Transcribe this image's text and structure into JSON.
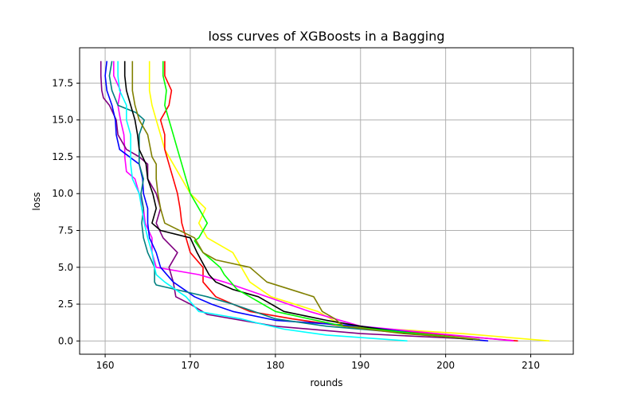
{
  "chart_data": {
    "type": "line",
    "title": "loss curves of XGBoosts in a Bagging",
    "xlabel": "rounds",
    "ylabel": "loss",
    "xlim": [
      157,
      215
    ],
    "ylim": [
      -0.9,
      19.9
    ],
    "xticks": [
      160,
      170,
      180,
      190,
      200,
      210
    ],
    "yticks": [
      0.0,
      2.5,
      5.0,
      7.5,
      10.0,
      12.5,
      15.0,
      17.5
    ],
    "xtick_labels": [
      "160",
      "170",
      "180",
      "190",
      "200",
      "210"
    ],
    "ytick_labels": [
      "0.0",
      "2.5",
      "5.0",
      "7.5",
      "10.0",
      "12.5",
      "15.0",
      "17.5"
    ],
    "grid": true,
    "legend": "none",
    "series": [
      {
        "color": "#ffff00",
        "points": [
          [
            212.2,
            0
          ],
          [
            202,
            0.5
          ],
          [
            188,
            1
          ],
          [
            185,
            2
          ],
          [
            179.5,
            3
          ],
          [
            177,
            4
          ],
          [
            175,
            6
          ],
          [
            172,
            7
          ],
          [
            171,
            8
          ],
          [
            171.8,
            9
          ],
          [
            170,
            10
          ],
          [
            169,
            11
          ],
          [
            168,
            12
          ],
          [
            167,
            13
          ],
          [
            166.5,
            14
          ],
          [
            166,
            15
          ],
          [
            165.5,
            16
          ],
          [
            165.2,
            17
          ],
          [
            165.2,
            19
          ]
        ]
      },
      {
        "color": "#ff0000",
        "points": [
          [
            208.5,
            0
          ],
          [
            198,
            0.5
          ],
          [
            188,
            1
          ],
          [
            182,
            1.5
          ],
          [
            177,
            2
          ],
          [
            173,
            3
          ],
          [
            171.5,
            4
          ],
          [
            171.5,
            5
          ],
          [
            170,
            6
          ],
          [
            169.5,
            7
          ],
          [
            169,
            8
          ],
          [
            168.8,
            9
          ],
          [
            168.5,
            10
          ],
          [
            168,
            11
          ],
          [
            167.5,
            12
          ],
          [
            167,
            13
          ],
          [
            167,
            14
          ],
          [
            166.5,
            15
          ],
          [
            167.5,
            16
          ],
          [
            167.8,
            17
          ],
          [
            167,
            18
          ],
          [
            167,
            19
          ]
        ]
      },
      {
        "color": "#ff00ff",
        "points": [
          [
            208,
            0
          ],
          [
            199,
            0.5
          ],
          [
            190,
            1
          ],
          [
            184,
            2
          ],
          [
            179,
            3
          ],
          [
            174,
            4
          ],
          [
            171,
            4.5
          ],
          [
            166,
            5
          ],
          [
            165.5,
            6
          ],
          [
            165.5,
            7
          ],
          [
            164.7,
            8
          ],
          [
            164.5,
            9
          ],
          [
            164,
            10
          ],
          [
            163.5,
            11
          ],
          [
            162.5,
            11.5
          ],
          [
            162.3,
            12.5
          ],
          [
            162.3,
            13
          ],
          [
            162.2,
            14
          ],
          [
            161.8,
            15
          ],
          [
            161.5,
            16
          ],
          [
            161.8,
            17
          ],
          [
            161,
            18
          ],
          [
            161,
            19
          ]
        ]
      },
      {
        "color": "#800080",
        "points": [
          [
            204,
            0.1
          ],
          [
            190,
            0.5
          ],
          [
            180,
            1
          ],
          [
            172,
            1.8
          ],
          [
            170,
            2.5
          ],
          [
            168.3,
            3
          ],
          [
            168,
            4
          ],
          [
            167.5,
            5
          ],
          [
            168.5,
            6
          ],
          [
            166.8,
            7
          ],
          [
            166,
            8
          ],
          [
            166.5,
            9
          ],
          [
            166,
            10
          ],
          [
            165,
            11
          ],
          [
            165,
            12
          ],
          [
            164,
            12.5
          ],
          [
            162.5,
            13
          ],
          [
            161.5,
            14
          ],
          [
            161.3,
            15
          ],
          [
            160.5,
            16
          ],
          [
            159.8,
            16.5
          ],
          [
            159.6,
            17
          ],
          [
            159.5,
            18
          ],
          [
            159.5,
            19
          ]
        ]
      },
      {
        "color": "#0000ff",
        "points": [
          [
            205,
            0
          ],
          [
            198,
            0.4
          ],
          [
            190,
            1
          ],
          [
            180,
            1.4
          ],
          [
            175,
            2
          ],
          [
            172.5,
            2.5
          ],
          [
            170.5,
            3
          ],
          [
            168,
            4
          ],
          [
            166.5,
            5
          ],
          [
            166,
            6
          ],
          [
            165.2,
            7
          ],
          [
            165,
            8
          ],
          [
            165,
            9
          ],
          [
            164.5,
            10
          ],
          [
            164.4,
            11
          ],
          [
            164,
            12
          ],
          [
            161.7,
            13
          ],
          [
            161.3,
            14
          ],
          [
            161.2,
            15
          ],
          [
            160.8,
            16
          ],
          [
            160.2,
            17
          ],
          [
            160,
            18
          ],
          [
            160.2,
            19
          ]
        ]
      },
      {
        "color": "#008080",
        "points": [
          [
            203,
            0.1
          ],
          [
            194,
            0.6
          ],
          [
            186,
            1
          ],
          [
            180,
            1.5
          ],
          [
            175,
            2.5
          ],
          [
            172,
            3
          ],
          [
            166,
            3.8
          ],
          [
            165.8,
            4
          ],
          [
            165.8,
            5
          ],
          [
            165,
            6
          ],
          [
            164.5,
            7
          ],
          [
            164.3,
            8
          ],
          [
            164.5,
            9
          ],
          [
            164.2,
            10
          ],
          [
            164.5,
            11
          ],
          [
            164,
            12
          ],
          [
            164,
            13
          ],
          [
            164,
            14
          ],
          [
            164.6,
            15
          ],
          [
            163.6,
            15.5
          ],
          [
            161.5,
            16
          ],
          [
            160.8,
            17
          ],
          [
            160.5,
            18
          ],
          [
            160.8,
            19
          ]
        ]
      },
      {
        "color": "#000000",
        "points": [
          [
            203.2,
            0.1
          ],
          [
            196,
            0.5
          ],
          [
            190,
            1
          ],
          [
            186,
            1.4
          ],
          [
            181,
            2
          ],
          [
            178,
            3
          ],
          [
            175,
            3.5
          ],
          [
            173,
            4
          ],
          [
            172.2,
            4.5
          ],
          [
            170.8,
            6
          ],
          [
            170,
            7
          ],
          [
            166.5,
            7.5
          ],
          [
            165.5,
            8
          ],
          [
            166,
            9
          ],
          [
            165.6,
            10
          ],
          [
            165,
            11
          ],
          [
            164.8,
            12
          ],
          [
            164,
            13
          ],
          [
            163.8,
            14
          ],
          [
            163.5,
            15
          ],
          [
            163,
            16
          ],
          [
            162.5,
            17
          ],
          [
            162.3,
            18
          ],
          [
            162.3,
            19
          ]
        ]
      },
      {
        "color": "#00ff00",
        "points": [
          [
            204,
            0.1
          ],
          [
            195,
            0.6
          ],
          [
            188,
            1
          ],
          [
            184,
            1.5
          ],
          [
            180,
            2
          ],
          [
            177,
            3
          ],
          [
            175.5,
            3.5
          ],
          [
            174,
            4.5
          ],
          [
            173.5,
            5
          ],
          [
            172.5,
            5.5
          ],
          [
            171.5,
            6
          ],
          [
            170.5,
            6.8
          ],
          [
            171,
            7
          ],
          [
            172,
            8
          ],
          [
            171.5,
            8.5
          ],
          [
            170,
            10
          ],
          [
            169.5,
            11
          ],
          [
            169,
            12
          ],
          [
            168.5,
            13
          ],
          [
            168,
            14
          ],
          [
            167.5,
            15
          ],
          [
            167,
            16
          ],
          [
            167.2,
            17
          ],
          [
            166.8,
            18
          ],
          [
            166.8,
            19
          ]
        ]
      },
      {
        "color": "#808000",
        "points": [
          [
            204,
            0.1
          ],
          [
            195,
            0.5
          ],
          [
            188,
            1
          ],
          [
            187,
            1.5
          ],
          [
            185.5,
            2
          ],
          [
            184.5,
            3
          ],
          [
            179,
            4
          ],
          [
            177,
            5
          ],
          [
            173,
            5.5
          ],
          [
            171.5,
            6
          ],
          [
            171,
            6.5
          ],
          [
            170.5,
            7
          ],
          [
            167,
            8
          ],
          [
            166.5,
            9
          ],
          [
            166.2,
            10
          ],
          [
            166,
            11
          ],
          [
            166,
            12
          ],
          [
            165.5,
            12.5
          ],
          [
            165,
            14
          ],
          [
            164,
            15
          ],
          [
            163.5,
            16
          ],
          [
            163.2,
            17
          ],
          [
            163.2,
            18
          ],
          [
            163.2,
            19
          ]
        ]
      },
      {
        "color": "#00ffff",
        "points": [
          [
            195.5,
            0
          ],
          [
            186,
            0.4
          ],
          [
            181,
            0.8
          ],
          [
            178,
            1.2
          ],
          [
            176,
            1.5
          ],
          [
            173,
            1.8
          ],
          [
            171,
            2
          ],
          [
            169.5,
            3
          ],
          [
            167,
            4
          ],
          [
            166,
            4.5
          ],
          [
            165.8,
            5
          ],
          [
            165.5,
            6
          ],
          [
            165,
            7
          ],
          [
            164.6,
            8
          ],
          [
            164.3,
            9
          ],
          [
            164,
            10
          ],
          [
            163.2,
            11
          ],
          [
            163,
            12
          ],
          [
            163,
            13
          ],
          [
            163,
            14
          ],
          [
            162.5,
            15
          ],
          [
            162.5,
            16
          ],
          [
            161.7,
            17
          ],
          [
            161.5,
            18
          ],
          [
            161.5,
            19
          ]
        ]
      }
    ]
  }
}
